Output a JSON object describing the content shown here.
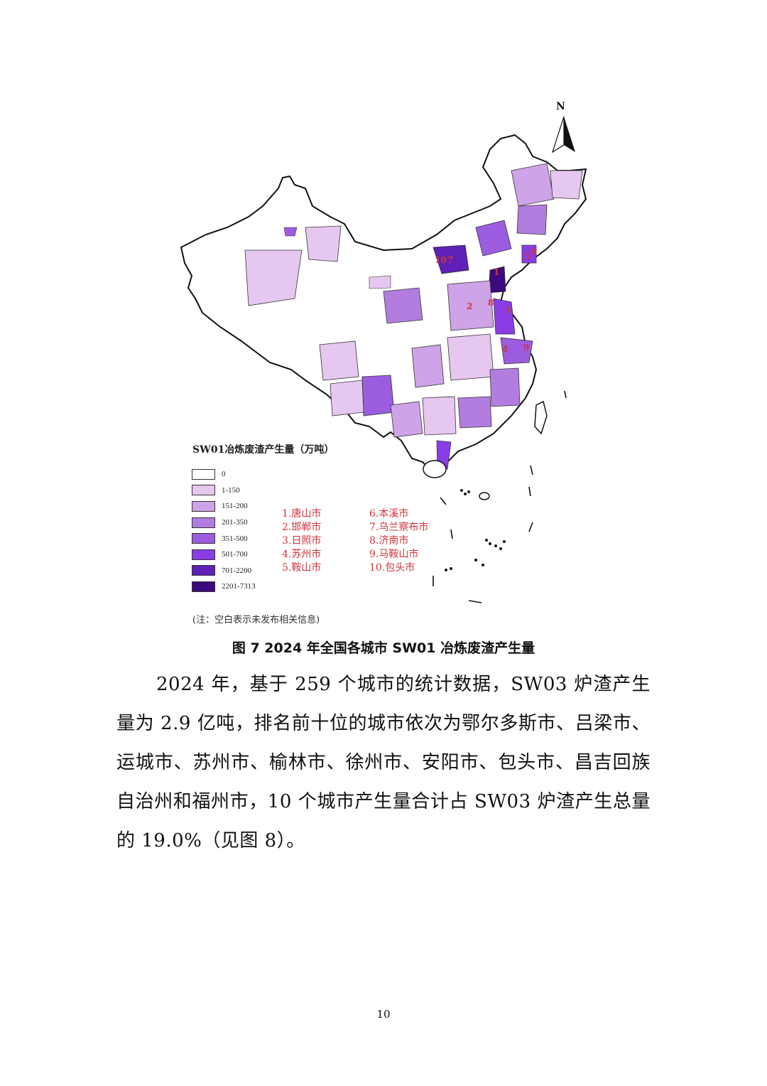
{
  "figure": {
    "north_label": "N",
    "legend_title": "SW01冶炼废渣产生量（万吨）",
    "legend": [
      {
        "label": "0",
        "color": "#ffffff"
      },
      {
        "label": "1-150",
        "color": "#e6c7f0"
      },
      {
        "label": "151-200",
        "color": "#cfa3e8"
      },
      {
        "label": "201-350",
        "color": "#b37ddf"
      },
      {
        "label": "351-500",
        "color": "#9c5ce0"
      },
      {
        "label": "501-700",
        "color": "#8a3de6"
      },
      {
        "label": "701-2200",
        "color": "#5f20b8"
      },
      {
        "label": "2201-7313",
        "color": "#3a0a7e"
      }
    ],
    "cities_left": [
      "1.唐山市",
      "2.邯郸市",
      "3.日照市",
      "4.苏州市",
      "5.鞍山市"
    ],
    "cities_right": [
      "6.本溪市",
      "7.乌兰察布市",
      "8.济南市",
      "9.马鞍山市",
      "10.包头市"
    ],
    "note": "(注：空白表示未发布相关信息)",
    "caption": "图 7 2024 年全国各城市 SW01 冶炼废渣产生量",
    "map_marker_color": "#d0353a"
  },
  "body": {
    "paragraph": "2024 年，基于 259 个城市的统计数据，SW03 炉渣产生量为 2.9 亿吨，排名前十位的城市依次为鄂尔多斯市、吕梁市、运城市、苏州市、榆林市、徐州市、安阳市、包头市、昌吉回族自治州和福州市，10 个城市产生量合计占 SW03 炉渣产生总量的 19.0%（见图 8）。"
  },
  "page_number": "10"
}
